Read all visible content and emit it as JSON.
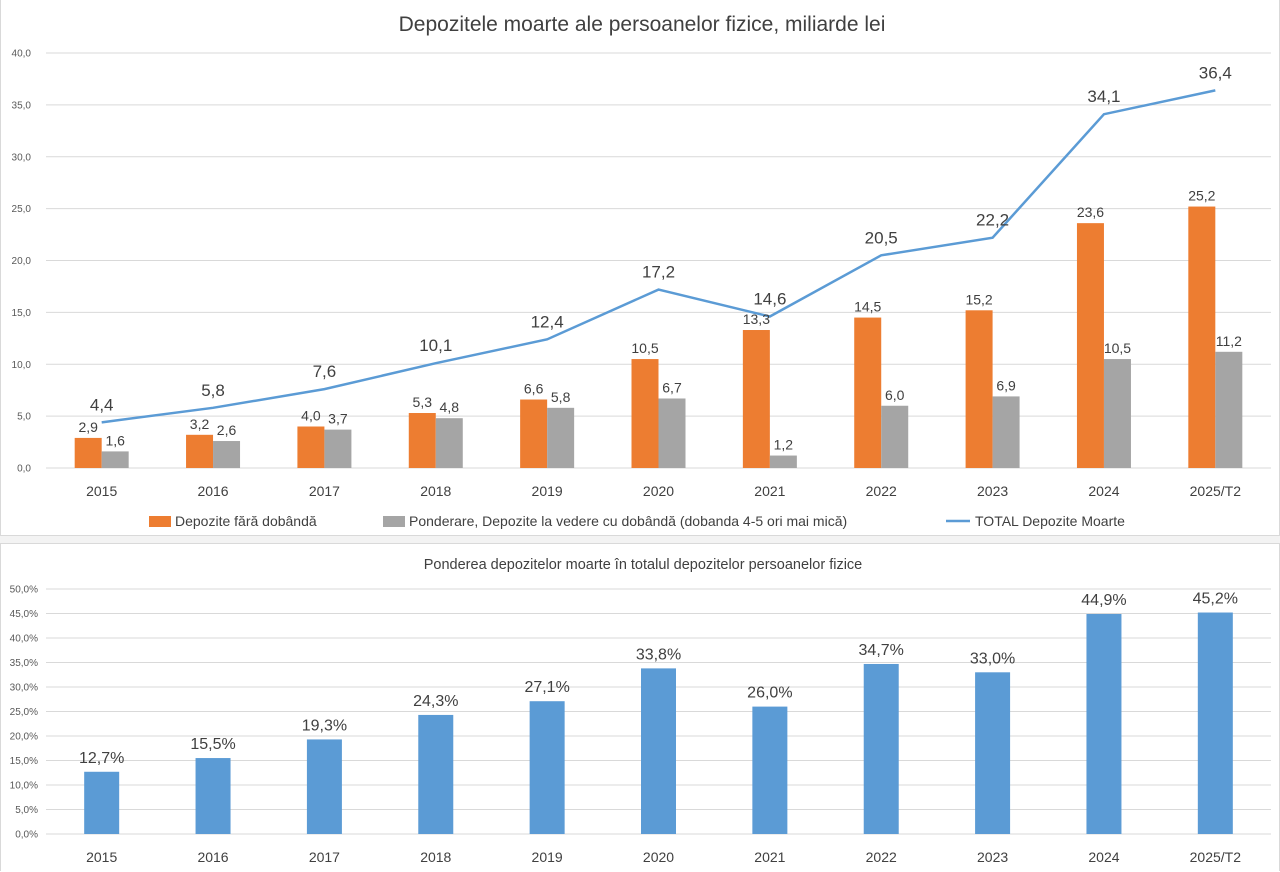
{
  "chart_data": [
    {
      "type": "bar",
      "title": "Depozitele moarte ale persoanelor fizice, miliarde lei",
      "categories": [
        "2015",
        "2016",
        "2017",
        "2018",
        "2019",
        "2020",
        "2021",
        "2022",
        "2023",
        "2024",
        "2025/T2"
      ],
      "ylim": [
        0,
        40
      ],
      "yticks": [
        "0,0",
        "5,0",
        "10,0",
        "15,0",
        "20,0",
        "25,0",
        "30,0",
        "35,0",
        "40,0"
      ],
      "grid": true,
      "legend_position": "bottom",
      "series": [
        {
          "name": "Depozite fără dobândă",
          "type": "bar",
          "color": "#ed7d31",
          "values": [
            2.9,
            3.2,
            4.0,
            5.3,
            6.6,
            10.5,
            13.3,
            14.5,
            15.2,
            23.6,
            25.2
          ],
          "labels": [
            "2,9",
            "3,2",
            "4,0",
            "5,3",
            "6,6",
            "10,5",
            "13,3",
            "14,5",
            "15,2",
            "23,6",
            "25,2"
          ]
        },
        {
          "name": "Ponderare, Depozite la vedere cu dobândă (dobanda 4-5 ori mai mică)",
          "type": "bar",
          "color": "#a5a5a5",
          "values": [
            1.6,
            2.6,
            3.7,
            4.8,
            5.8,
            6.7,
            1.2,
            6.0,
            6.9,
            10.5,
            11.2
          ],
          "labels": [
            "1,6",
            "2,6",
            "3,7",
            "4,8",
            "5,8",
            "6,7",
            "1,2",
            "6,0",
            "6,9",
            "10,5",
            "11,2"
          ]
        },
        {
          "name": "TOTAL Depozite Moarte",
          "type": "line",
          "color": "#5b9bd5",
          "values": [
            4.4,
            5.8,
            7.6,
            10.1,
            12.4,
            17.2,
            14.6,
            20.5,
            22.2,
            34.1,
            36.4
          ],
          "labels": [
            "4,4",
            "5,8",
            "7,6",
            "10,1",
            "12,4",
            "17,2",
            "14,6",
            "20,5",
            "22,2",
            "34,1",
            "36,4"
          ]
        }
      ]
    },
    {
      "type": "bar",
      "title": "Ponderea depozitelor moarte în totalul depozitelor persoanelor fizice",
      "categories": [
        "2015",
        "2016",
        "2017",
        "2018",
        "2019",
        "2020",
        "2021",
        "2022",
        "2023",
        "2024",
        "2025/T2"
      ],
      "ylim": [
        0,
        50
      ],
      "yticks": [
        "0,0%",
        "5,0%",
        "10,0%",
        "15,0%",
        "20,0%",
        "25,0%",
        "30,0%",
        "35,0%",
        "40,0%",
        "45,0%",
        "50,0%"
      ],
      "grid": true,
      "series": [
        {
          "color": "#5b9bd5",
          "values": [
            12.7,
            15.5,
            19.3,
            24.3,
            27.1,
            33.8,
            26.0,
            34.7,
            33.0,
            44.9,
            45.2
          ],
          "labels": [
            "12,7%",
            "15,5%",
            "19,3%",
            "24,3%",
            "27,1%",
            "33,8%",
            "26,0%",
            "34,7%",
            "33,0%",
            "44,9%",
            "45,2%"
          ]
        }
      ]
    }
  ]
}
